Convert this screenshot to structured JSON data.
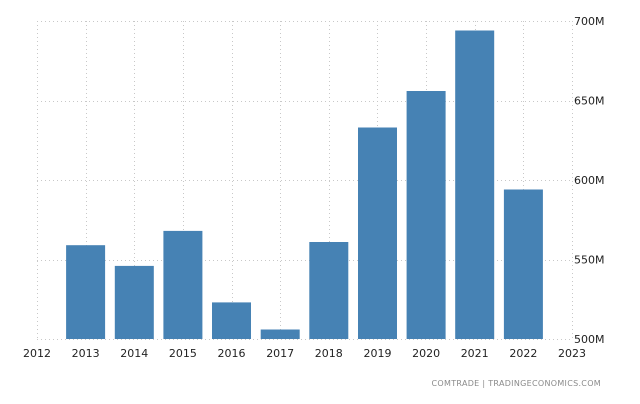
{
  "source": "COMTRADE | TRADINGECONOMICS.COM",
  "chart_data": {
    "type": "bar",
    "title": "",
    "xlabel": "",
    "ylabel": "",
    "categories": [
      "2013",
      "2014",
      "2015",
      "2016",
      "2017",
      "2018",
      "2019",
      "2020",
      "2021",
      "2022"
    ],
    "values": [
      559,
      546,
      568,
      523,
      506,
      561,
      633,
      656,
      694,
      594
    ],
    "value_unit": "M",
    "ylim": [
      500,
      700
    ],
    "yticks": [
      500,
      550,
      600,
      650,
      700
    ],
    "ytick_labels": [
      "500M",
      "550M",
      "600M",
      "650M",
      "700M"
    ],
    "xlim": [
      2012,
      2023
    ],
    "xtick_labels": [
      "2012",
      "2013",
      "2014",
      "2015",
      "2016",
      "2017",
      "2018",
      "2019",
      "2020",
      "2021",
      "2022",
      "2023"
    ],
    "y_axis_position": "right",
    "grid": true,
    "legend": "none",
    "bar_color": "#4682b4"
  }
}
